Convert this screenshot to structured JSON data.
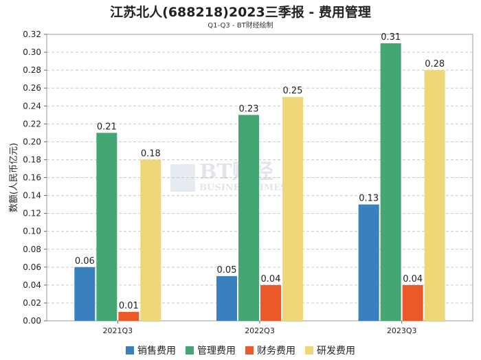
{
  "chart_data": {
    "type": "bar",
    "title": "江苏北人(688218)2023三季报 - 费用管理",
    "subtitle": "Q1-Q3 - BT财经绘制",
    "ylabel": "数额(人民币亿元)",
    "xlabel": "",
    "ylim": [
      0,
      0.32
    ],
    "yticks": [
      0.0,
      0.02,
      0.04,
      0.06,
      0.08,
      0.1,
      0.12,
      0.14,
      0.16,
      0.18,
      0.2,
      0.22,
      0.24,
      0.26,
      0.28,
      0.3,
      0.32
    ],
    "categories": [
      "2021Q3",
      "2022Q3",
      "2023Q3"
    ],
    "series": [
      {
        "name": "销售费用",
        "color": "#3a80bd",
        "values": [
          0.06,
          0.05,
          0.13
        ]
      },
      {
        "name": "管理费用",
        "color": "#44a673",
        "values": [
          0.21,
          0.23,
          0.31
        ]
      },
      {
        "name": "财务费用",
        "color": "#ec5a2a",
        "values": [
          0.01,
          0.04,
          0.04
        ]
      },
      {
        "name": "研发费用",
        "color": "#eed679",
        "values": [
          0.18,
          0.25,
          0.28
        ]
      }
    ],
    "grid": true,
    "legend_position": "bottom"
  },
  "watermark": {
    "line1": "BT财经",
    "line2": "BUSINESSTIMES"
  }
}
